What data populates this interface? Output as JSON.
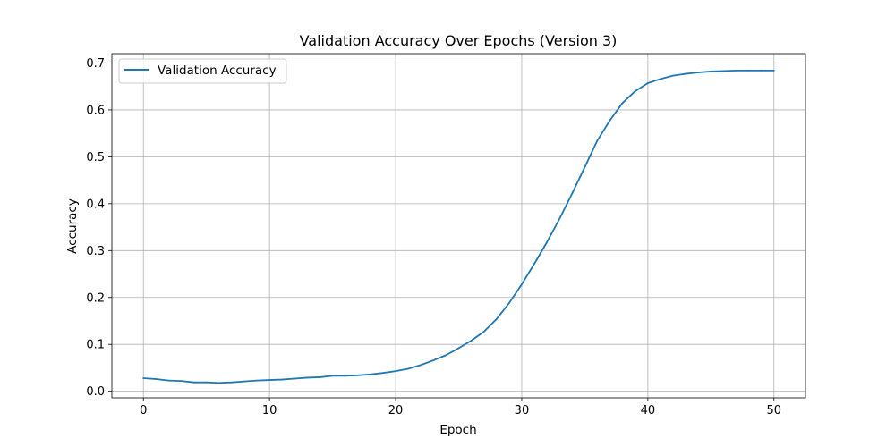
{
  "chart_data": {
    "type": "line",
    "title": "Validation Accuracy Over Epochs (Version 3)",
    "xlabel": "Epoch",
    "ylabel": "Accuracy",
    "xlim": [
      -2.5,
      52.5
    ],
    "ylim": [
      -0.014,
      0.72
    ],
    "xticks": [
      0,
      10,
      20,
      30,
      40,
      50
    ],
    "yticks": [
      0.0,
      0.1,
      0.2,
      0.3,
      0.4,
      0.5,
      0.6,
      0.7
    ],
    "xtick_labels": [
      "0",
      "10",
      "20",
      "30",
      "40",
      "50"
    ],
    "ytick_labels": [
      "0.0",
      "0.1",
      "0.2",
      "0.3",
      "0.4",
      "0.5",
      "0.6",
      "0.7"
    ],
    "grid": true,
    "legend_position": "upper-left",
    "series": [
      {
        "name": "Validation Accuracy",
        "color": "#1f77b4",
        "x": [
          0,
          1,
          2,
          3,
          4,
          5,
          6,
          7,
          8,
          9,
          10,
          11,
          12,
          13,
          14,
          15,
          16,
          17,
          18,
          19,
          20,
          21,
          22,
          23,
          24,
          25,
          26,
          27,
          28,
          29,
          30,
          31,
          32,
          33,
          34,
          35,
          36,
          37,
          38,
          39,
          40,
          41,
          42,
          43,
          44,
          45,
          46,
          47,
          48,
          49,
          50
        ],
        "y": [
          0.028,
          0.026,
          0.023,
          0.022,
          0.019,
          0.019,
          0.018,
          0.019,
          0.021,
          0.023,
          0.024,
          0.025,
          0.027,
          0.029,
          0.03,
          0.033,
          0.033,
          0.034,
          0.036,
          0.039,
          0.043,
          0.048,
          0.056,
          0.066,
          0.077,
          0.092,
          0.108,
          0.127,
          0.154,
          0.188,
          0.228,
          0.272,
          0.318,
          0.368,
          0.422,
          0.478,
          0.535,
          0.578,
          0.615,
          0.64,
          0.657,
          0.666,
          0.673,
          0.677,
          0.68,
          0.682,
          0.683,
          0.684,
          0.684,
          0.684,
          0.684
        ]
      }
    ]
  }
}
